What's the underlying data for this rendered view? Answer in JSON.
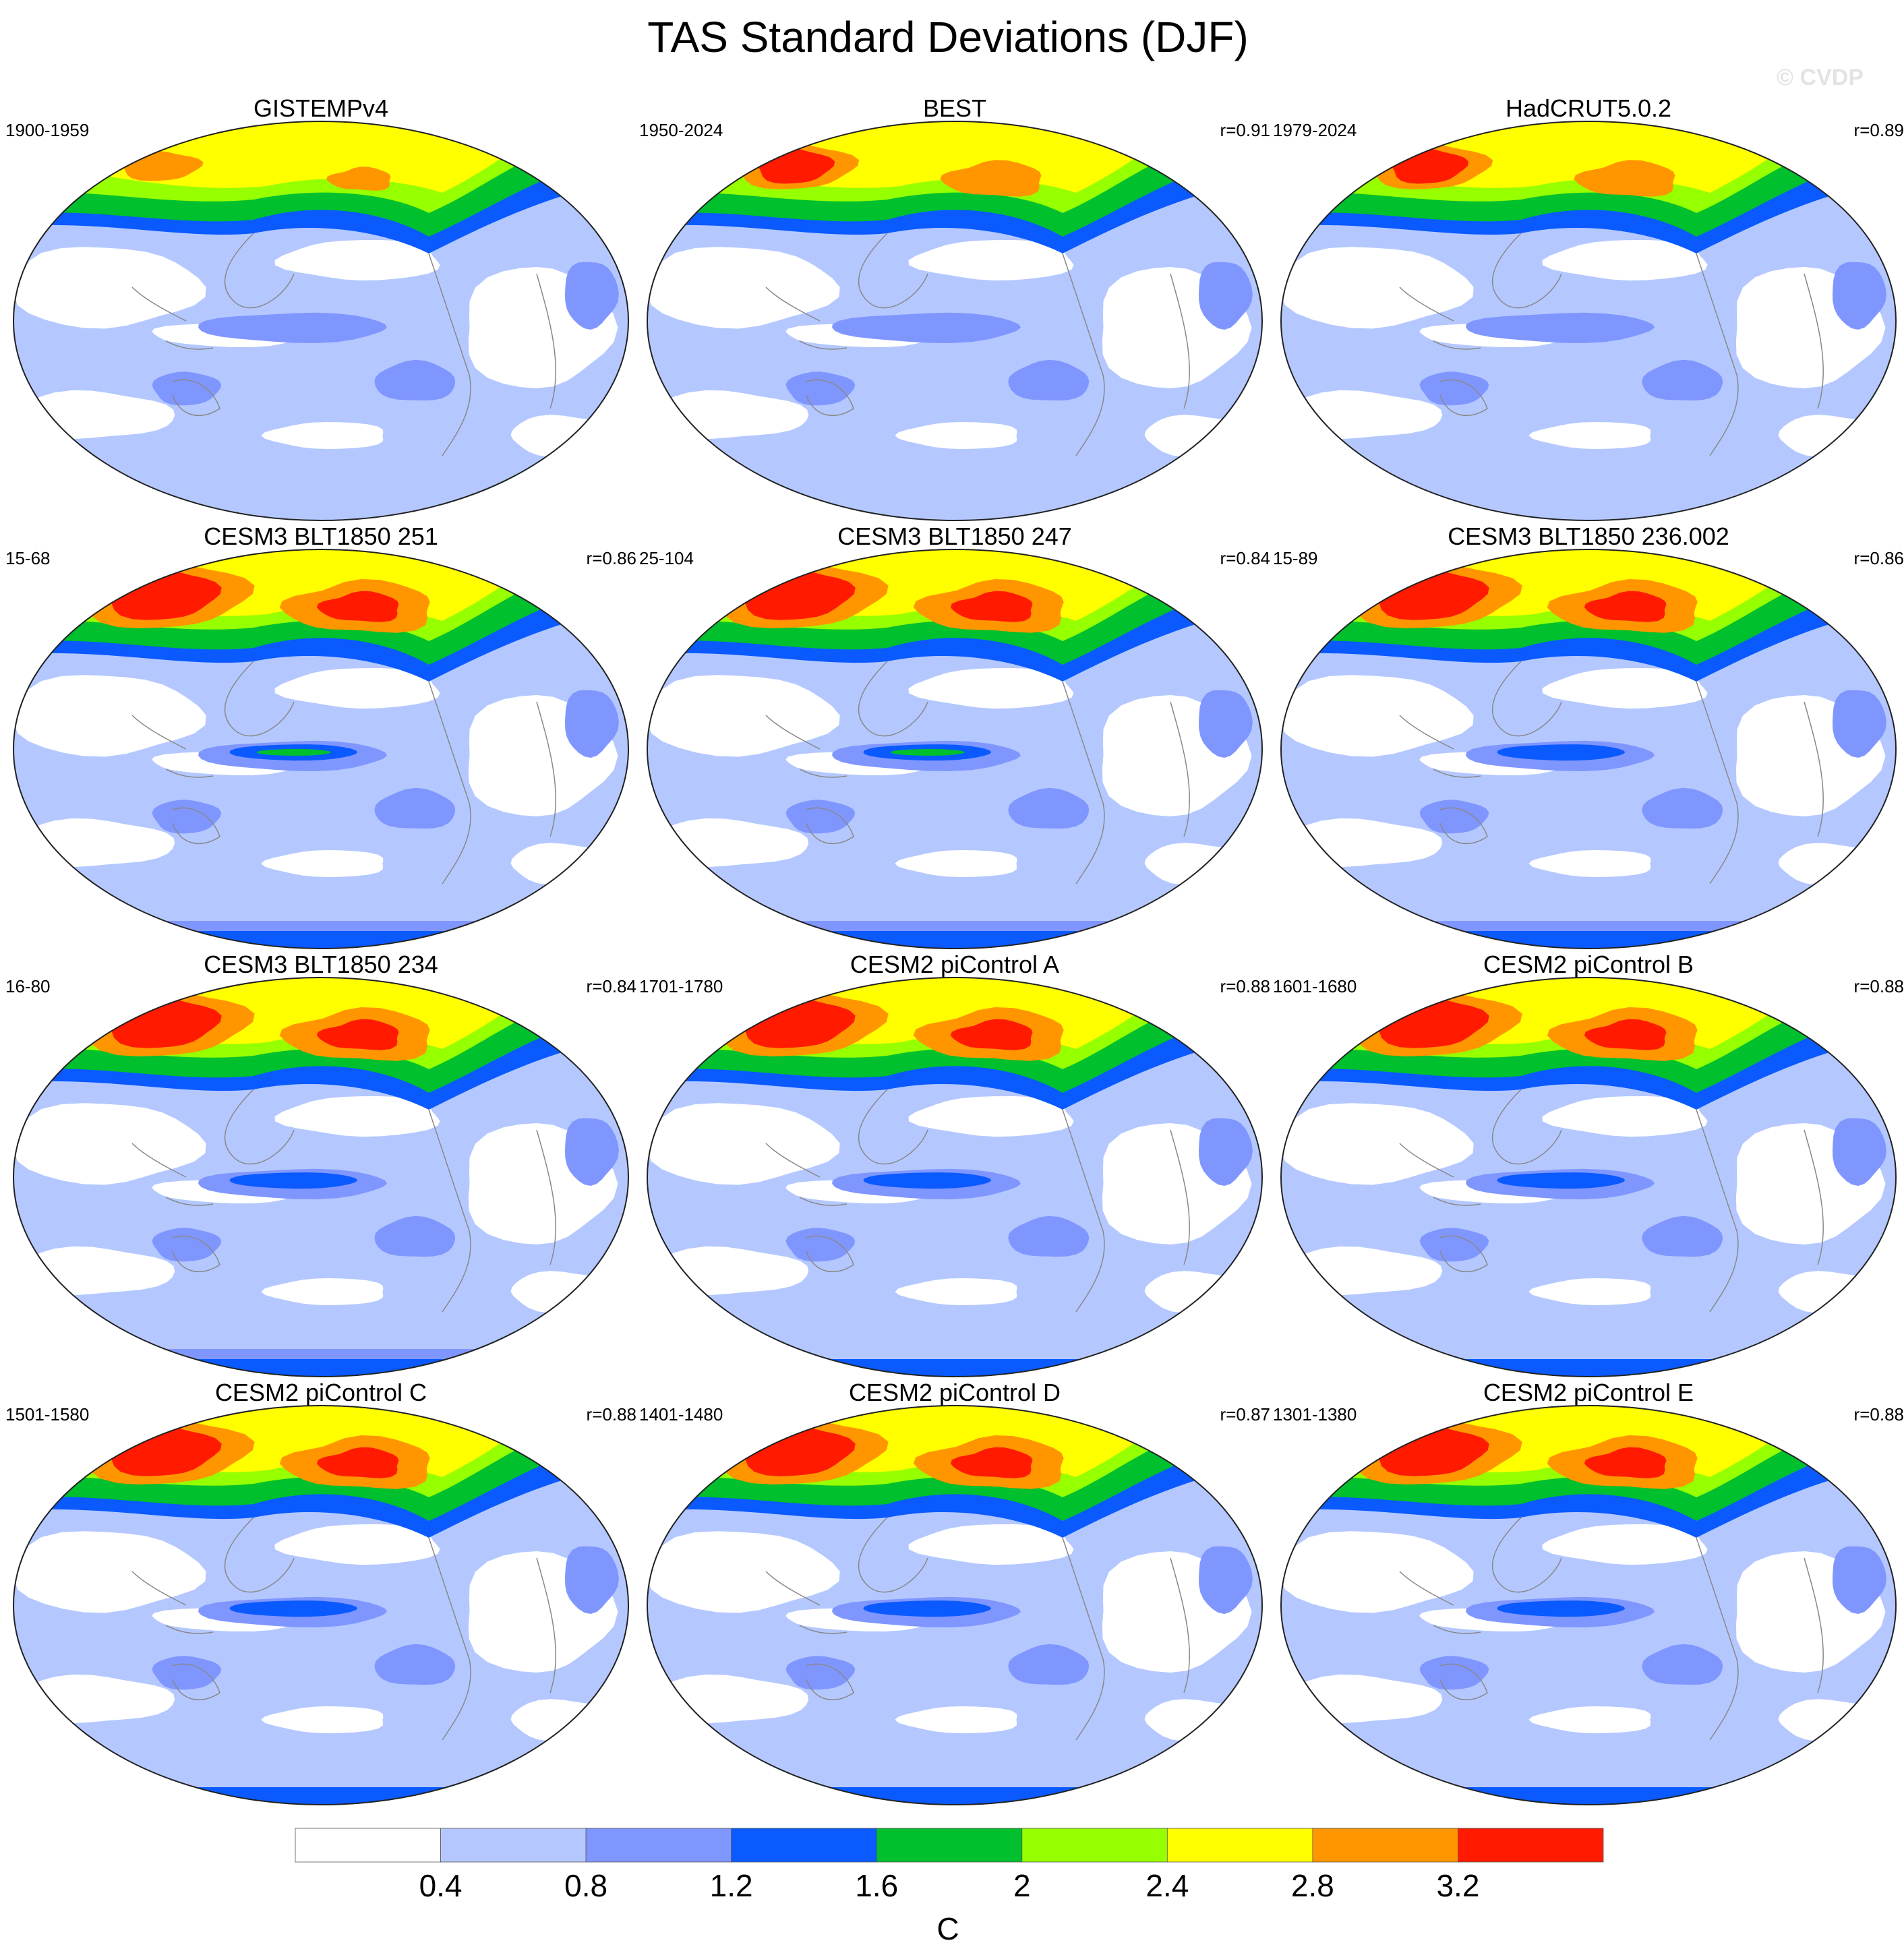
{
  "title": "TAS Standard Deviations (DJF)",
  "watermark": "© CVDP",
  "colors": {
    "levels": [
      "#ffffff",
      "#b4c8ff",
      "#8096ff",
      "#0a5aff",
      "#00c02d",
      "#96ff00",
      "#ffff00",
      "#ff9600",
      "#ff1a00"
    ],
    "coast": "#888888",
    "outline": "#222222"
  },
  "panels": [
    {
      "title": "GISTEMPv4",
      "period": "1900-1959",
      "r": ""
    },
    {
      "title": "BEST",
      "period": "1950-2024",
      "r": "r=0.91"
    },
    {
      "title": "HadCRUT5.0.2",
      "period": "1979-2024",
      "r": "r=0.89"
    },
    {
      "title": "CESM3 BLT1850 251",
      "period": "15-68",
      "r": "r=0.86"
    },
    {
      "title": "CESM3 BLT1850 247",
      "period": "25-104",
      "r": "r=0.84"
    },
    {
      "title": "CESM3 BLT1850 236.002",
      "period": "15-89",
      "r": "r=0.86"
    },
    {
      "title": "CESM3 BLT1850 234",
      "period": "16-80",
      "r": "r=0.84"
    },
    {
      "title": "CESM2 piControl A",
      "period": "1701-1780",
      "r": "r=0.88"
    },
    {
      "title": "CESM2 piControl B",
      "period": "1601-1680",
      "r": "r=0.88"
    },
    {
      "title": "CESM2 piControl C",
      "period": "1501-1580",
      "r": "r=0.88"
    },
    {
      "title": "CESM2 piControl D",
      "period": "1401-1480",
      "r": "r=0.87"
    },
    {
      "title": "CESM2 piControl E",
      "period": "1301-1380",
      "r": "r=0.88"
    }
  ],
  "chart_data": {
    "type": "heatmap",
    "title": "TAS Standard Deviations (DJF)",
    "colorbar": {
      "tick_labels": [
        "0.4",
        "0.8",
        "1.2",
        "1.6",
        "2",
        "2.4",
        "2.8",
        "3.2"
      ],
      "levels": [
        0.4,
        0.8,
        1.2,
        1.6,
        2,
        2.4,
        2.8,
        3.2
      ],
      "unit": "C"
    }
  }
}
